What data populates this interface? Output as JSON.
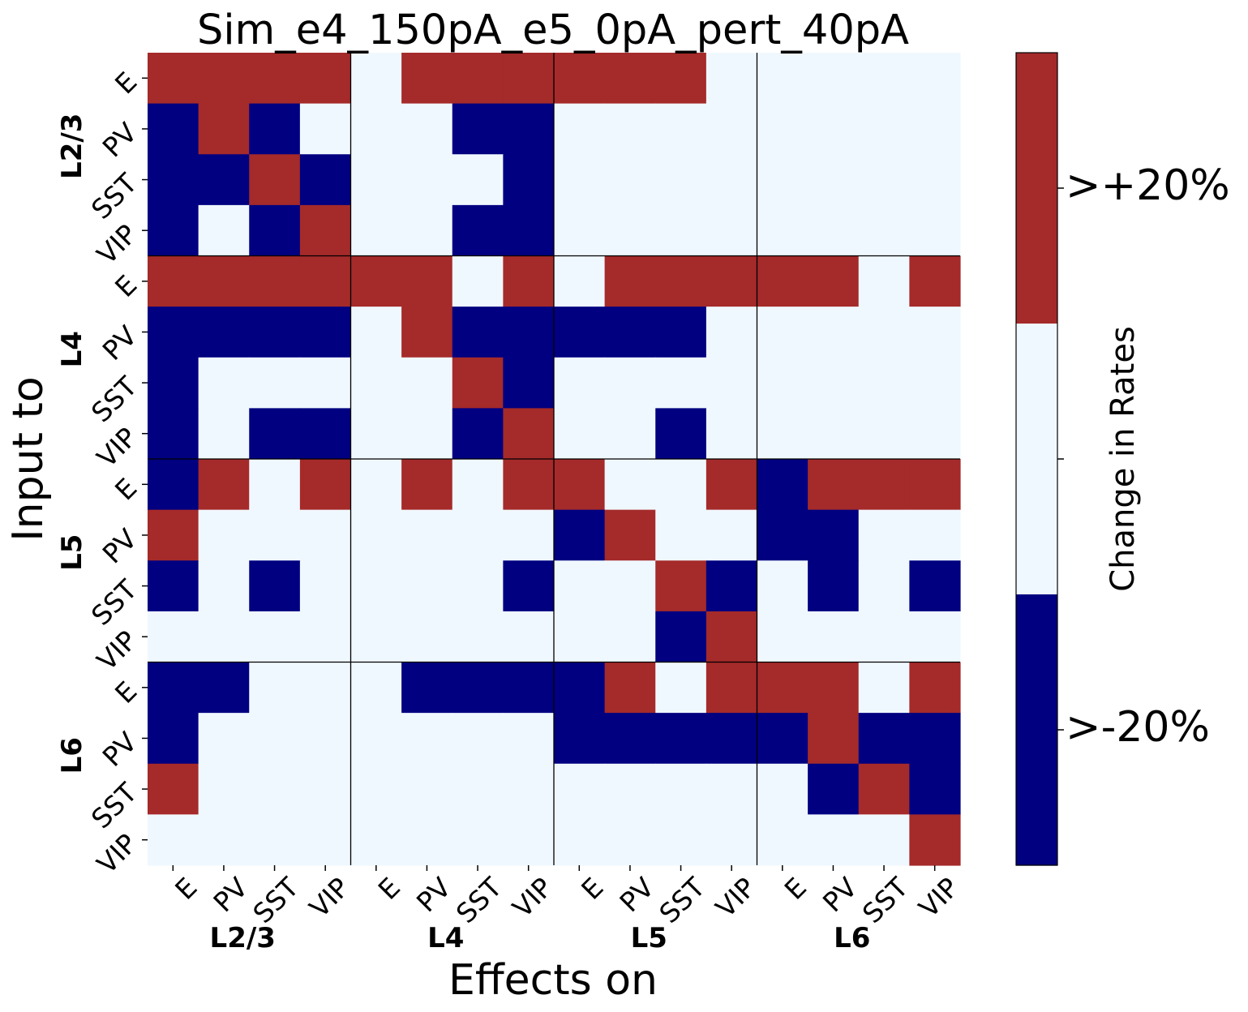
{
  "chart_data": {
    "type": "heatmap",
    "title": "Sim_e4_150pA_e5_0pA_pert_40pA",
    "xlabel": "Effects on",
    "ylabel": "Input to",
    "layers": [
      "L2/3",
      "L4",
      "L5",
      "L6"
    ],
    "cell_types": [
      "E",
      "PV",
      "SST",
      "VIP"
    ],
    "colorbar": {
      "label": "Change in Rates",
      "tick_labels": [
        ">-20%",
        ">+20%"
      ],
      "levels": [
        -1,
        0,
        1
      ],
      "colors": {
        "-1": "#000080",
        "0": "#f0f8ff",
        "1": "#a52a2a"
      }
    },
    "matrix": [
      [
        1,
        1,
        1,
        1,
        0,
        1,
        1,
        1,
        1,
        1,
        1,
        0,
        0,
        0,
        0,
        0
      ],
      [
        -1,
        1,
        -1,
        0,
        0,
        0,
        -1,
        -1,
        0,
        0,
        0,
        0,
        0,
        0,
        0,
        0
      ],
      [
        -1,
        -1,
        1,
        -1,
        0,
        0,
        0,
        -1,
        0,
        0,
        0,
        0,
        0,
        0,
        0,
        0
      ],
      [
        -1,
        0,
        -1,
        1,
        0,
        0,
        -1,
        -1,
        0,
        0,
        0,
        0,
        0,
        0,
        0,
        0
      ],
      [
        1,
        1,
        1,
        1,
        1,
        1,
        0,
        1,
        0,
        1,
        1,
        1,
        1,
        1,
        0,
        1
      ],
      [
        -1,
        -1,
        -1,
        -1,
        0,
        1,
        -1,
        -1,
        -1,
        -1,
        -1,
        0,
        0,
        0,
        0,
        0
      ],
      [
        -1,
        0,
        0,
        0,
        0,
        0,
        1,
        -1,
        0,
        0,
        0,
        0,
        0,
        0,
        0,
        0
      ],
      [
        -1,
        0,
        -1,
        -1,
        0,
        0,
        -1,
        1,
        0,
        0,
        -1,
        0,
        0,
        0,
        0,
        0
      ],
      [
        -1,
        1,
        0,
        1,
        0,
        1,
        0,
        1,
        1,
        0,
        0,
        1,
        -1,
        1,
        1,
        1
      ],
      [
        1,
        0,
        0,
        0,
        0,
        0,
        0,
        0,
        -1,
        1,
        0,
        0,
        -1,
        -1,
        0,
        0
      ],
      [
        -1,
        0,
        -1,
        0,
        0,
        0,
        0,
        -1,
        0,
        0,
        1,
        -1,
        0,
        -1,
        0,
        -1
      ],
      [
        0,
        0,
        0,
        0,
        0,
        0,
        0,
        0,
        0,
        0,
        -1,
        1,
        0,
        0,
        0,
        0
      ],
      [
        -1,
        -1,
        0,
        0,
        0,
        -1,
        -1,
        -1,
        -1,
        1,
        0,
        1,
        1,
        1,
        0,
        1
      ],
      [
        -1,
        0,
        0,
        0,
        0,
        0,
        0,
        0,
        -1,
        -1,
        -1,
        -1,
        -1,
        1,
        -1,
        -1
      ],
      [
        1,
        0,
        0,
        0,
        0,
        0,
        0,
        0,
        0,
        0,
        0,
        0,
        0,
        -1,
        1,
        -1
      ],
      [
        0,
        0,
        0,
        0,
        0,
        0,
        0,
        0,
        0,
        0,
        0,
        0,
        0,
        0,
        0,
        1
      ]
    ]
  }
}
